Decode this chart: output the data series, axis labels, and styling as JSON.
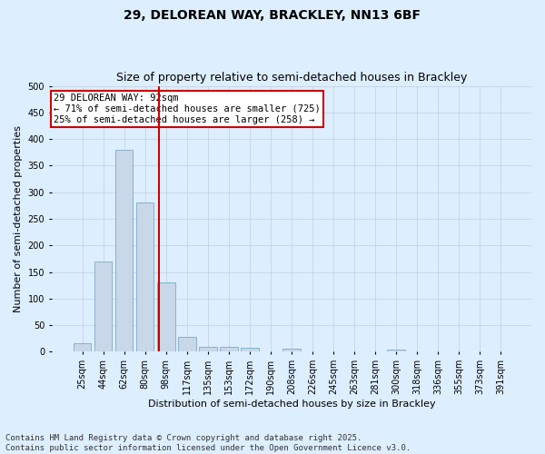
{
  "title_line1": "29, DELOREAN WAY, BRACKLEY, NN13 6BF",
  "title_line2": "Size of property relative to semi-detached houses in Brackley",
  "xlabel": "Distribution of semi-detached houses by size in Brackley",
  "ylabel": "Number of semi-detached properties",
  "bins": [
    "25sqm",
    "44sqm",
    "62sqm",
    "80sqm",
    "98sqm",
    "117sqm",
    "135sqm",
    "153sqm",
    "172sqm",
    "190sqm",
    "208sqm",
    "226sqm",
    "245sqm",
    "263sqm",
    "281sqm",
    "300sqm",
    "318sqm",
    "336sqm",
    "355sqm",
    "373sqm",
    "391sqm"
  ],
  "counts": [
    16,
    170,
    380,
    280,
    130,
    28,
    10,
    9,
    7,
    0,
    6,
    0,
    0,
    0,
    0,
    4,
    0,
    0,
    0,
    0,
    0
  ],
  "bar_color": "#c8d8e8",
  "bar_edge_color": "#7aaacc",
  "annotation_text_line1": "29 DELOREAN WAY: 92sqm",
  "annotation_text_line2": "← 71% of semi-detached houses are smaller (725)",
  "annotation_text_line3": "25% of semi-detached houses are larger (258) →",
  "annotation_box_color": "#ffffff",
  "annotation_border_color": "#cc0000",
  "vline_color": "#cc0000",
  "ylim": [
    0,
    500
  ],
  "yticks": [
    0,
    50,
    100,
    150,
    200,
    250,
    300,
    350,
    400,
    450,
    500
  ],
  "grid_color": "#c8d8e8",
  "bg_color": "#ddeeff",
  "footer_line1": "Contains HM Land Registry data © Crown copyright and database right 2025.",
  "footer_line2": "Contains public sector information licensed under the Open Government Licence v3.0.",
  "title_fontsize": 10,
  "subtitle_fontsize": 9,
  "axis_label_fontsize": 8,
  "tick_fontsize": 7,
  "annotation_fontsize": 7.5,
  "footer_fontsize": 6.5
}
